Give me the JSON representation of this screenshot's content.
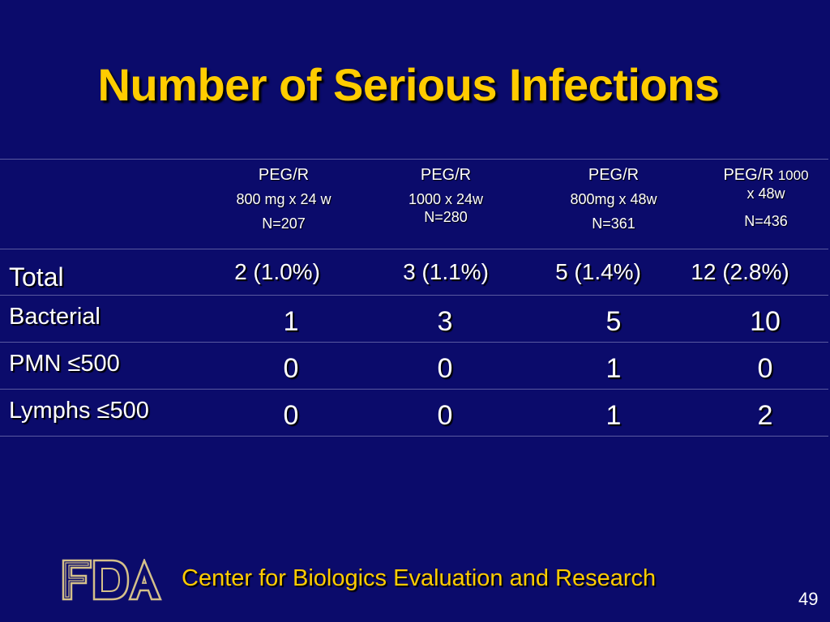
{
  "slide": {
    "title": "Number of Serious Infections",
    "footer": "Center for Biologics Evaluation and Research",
    "page_number": "49",
    "logo_text": "FDA"
  },
  "table": {
    "columns": [
      {
        "line1": "PEG/R",
        "line2": "800 mg x  24 w",
        "line3": "N=207"
      },
      {
        "line1": "PEG/R",
        "line2": "1000 x 24w",
        "line3": "N=280"
      },
      {
        "line1": "PEG/R",
        "line2": "800mg x 48w",
        "line3": "N=361"
      },
      {
        "line1": "PEG/R",
        "line1b": "1000",
        "line2": "x 48w",
        "line3": "N=436"
      }
    ],
    "rows": [
      {
        "label": "Total",
        "values": [
          "2 (1.0%)",
          "3 (1.1%)",
          "5 (1.4%)",
          "12 (2.8%)"
        ]
      },
      {
        "label": "Bacterial",
        "values": [
          "1",
          "3",
          "5",
          "10"
        ]
      },
      {
        "label": "PMN ≤500",
        "values": [
          "0",
          "0",
          "1",
          "0"
        ]
      },
      {
        "label": "Lymphs ≤500",
        "values": [
          "0",
          "0",
          "1",
          "2"
        ]
      }
    ]
  },
  "colors": {
    "background": "#0b0b6b",
    "title": "#ffcc00",
    "text": "#ffffff",
    "rule": "#5a5aa0"
  }
}
